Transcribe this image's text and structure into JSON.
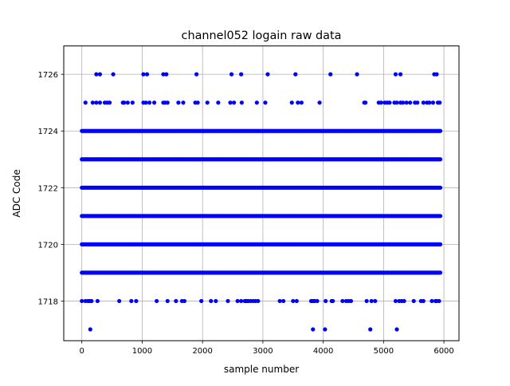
{
  "chart_data": {
    "type": "scatter",
    "title": "channel052 logain raw data",
    "xlabel": "sample number",
    "ylabel": "ADC Code",
    "xlim": [
      -300,
      6250
    ],
    "ylim": [
      1716.6,
      1727.0
    ],
    "xticks": [
      0,
      1000,
      2000,
      3000,
      4000,
      5000,
      6000
    ],
    "yticks": [
      1718,
      1720,
      1722,
      1724,
      1726
    ],
    "xtick_labels": [
      "0",
      "1000",
      "2000",
      "3000",
      "4000",
      "5000",
      "6000"
    ],
    "ytick_labels": [
      "1718",
      "1720",
      "1722",
      "1724",
      "1726"
    ],
    "grid": true,
    "marker_color": "#0000ff",
    "x_range": [
      0,
      5950
    ],
    "series": [
      {
        "values": [
          {
            "y": 1726,
            "x": [
              240,
              300,
              520,
              1020,
              1080,
              1350,
              1400,
              1900,
              2480,
              2640,
              3080,
              3540,
              4120,
              4560,
              5200,
              5280,
              5840,
              5880
            ]
          },
          {
            "y": 1725,
            "x": [
              60,
              180,
              240,
              300,
              380,
              420,
              460,
              680,
              700,
              760,
              840,
              1020,
              1060,
              1120,
              1200,
              1350,
              1380,
              1420,
              1600,
              1680,
              1880,
              1920,
              2080,
              2260,
              2460,
              2520,
              2650,
              2900,
              3040,
              3480,
              3580,
              3640,
              3940,
              4680,
              4700,
              4920,
              4960,
              5020,
              5060,
              5100,
              5180,
              5220,
              5280,
              5320,
              5380,
              5440,
              5520,
              5560,
              5660,
              5720,
              5760,
              5820,
              5900,
              5930
            ]
          },
          {
            "y": 1724,
            "x": [
              0,
              5950
            ]
          },
          {
            "y": 1723,
            "x": [
              0,
              5950
            ]
          },
          {
            "y": 1722,
            "x": [
              0,
              5950
            ]
          },
          {
            "y": 1721,
            "x": [
              0,
              5950
            ]
          },
          {
            "y": 1720,
            "x": [
              0,
              5950
            ]
          },
          {
            "y": 1719,
            "x": [
              0,
              5950
            ]
          },
          {
            "y": 1718,
            "x": [
              0,
              60,
              100,
              130,
              160,
              260,
              620,
              820,
              900,
              1240,
              1420,
              1560,
              1660,
              1700,
              1980,
              2140,
              2220,
              2420,
              2580,
              2640,
              2700,
              2720,
              2740,
              2760,
              2800,
              2840,
              2880,
              2920,
              3280,
              3340,
              3500,
              3560,
              3800,
              3820,
              3840,
              3860,
              3900,
              4040,
              4140,
              4160,
              4320,
              4380,
              4420,
              4460,
              4720,
              4800,
              4860,
              5200,
              5260,
              5300,
              5340,
              5500,
              5620,
              5660,
              5800,
              5860,
              5880,
              5920
            ]
          },
          {
            "y": 1717,
            "x": [
              140,
              3830,
              4030,
              4780,
              5220
            ]
          }
        ]
      }
    ]
  }
}
